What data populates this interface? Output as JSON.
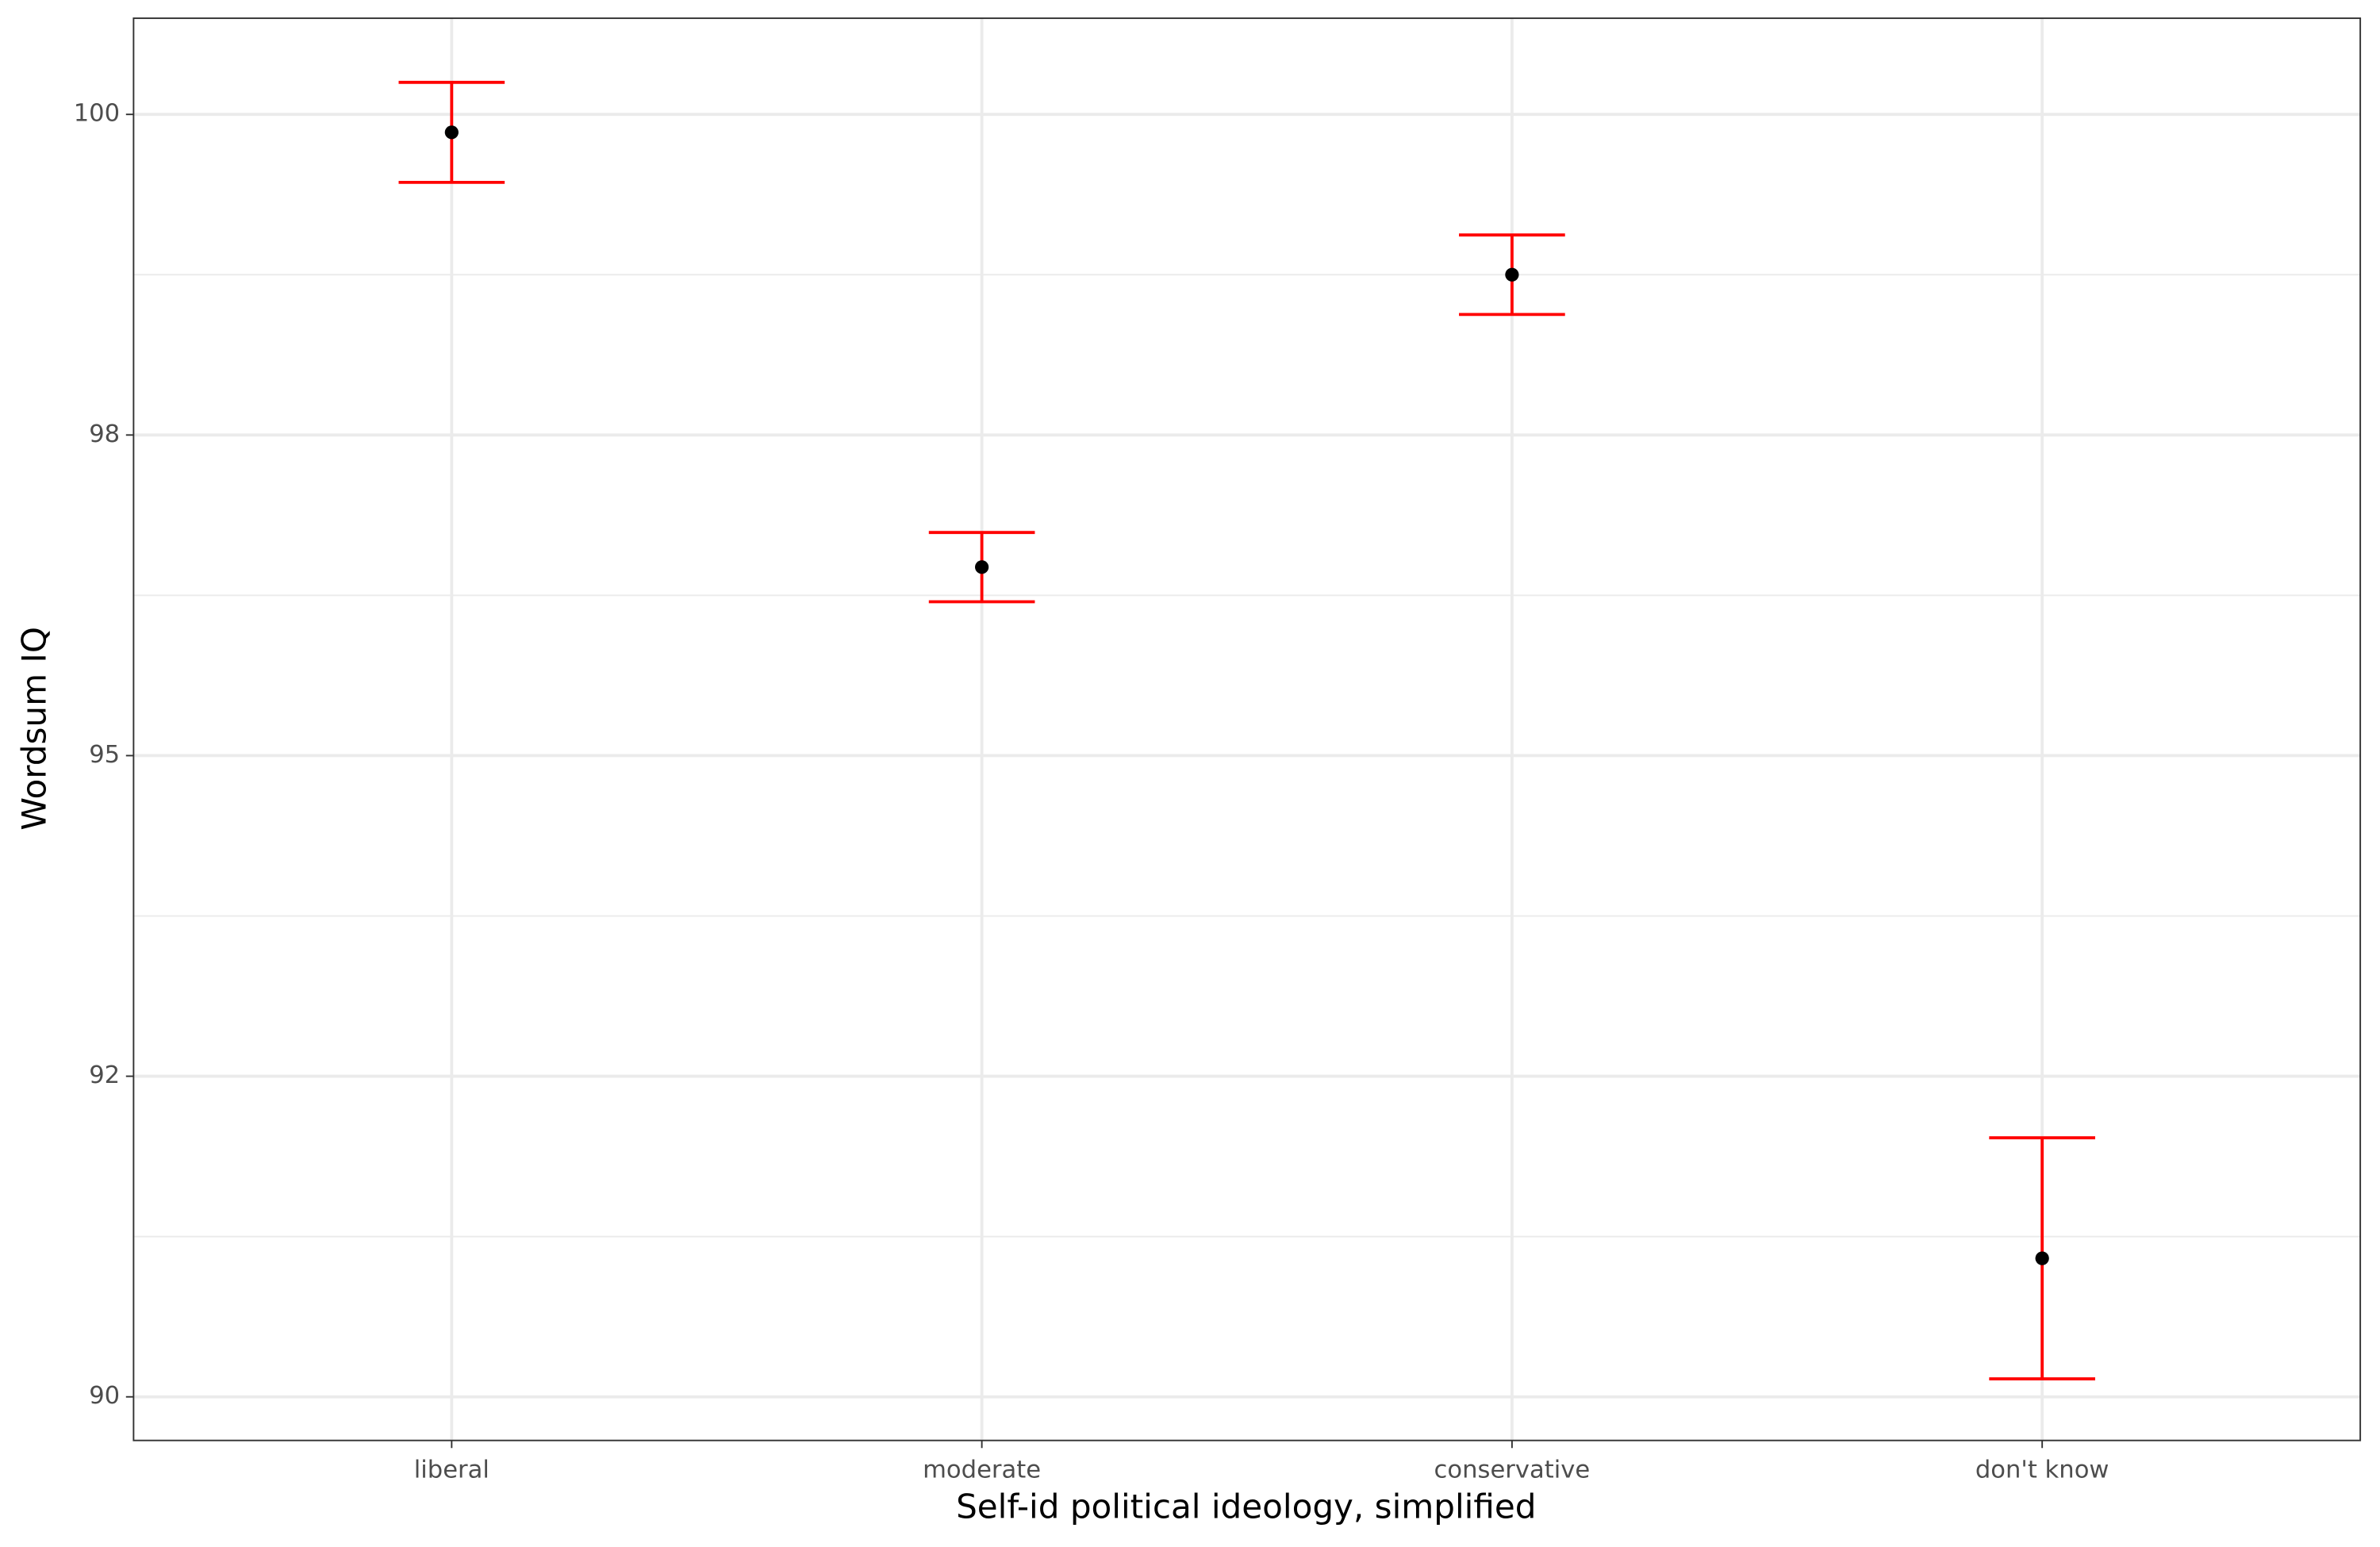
{
  "chart_data": {
    "type": "errorbar",
    "x_label": "Self-id political ideology, simplified",
    "y_label": "Wordsum IQ",
    "categories": [
      "liberal",
      "moderate",
      "conservative",
      "don't know"
    ],
    "values": [
      99.86,
      96.47,
      98.75,
      91.08
    ],
    "errors": [
      0.39,
      0.27,
      0.31,
      0.94
    ],
    "color": "#000000",
    "error_color": "#ff0000",
    "ylim": [
      89.66,
      100.75
    ],
    "yticks": [
      90,
      {
        "value": 92.5,
        "label": "92"
      },
      95,
      {
        "value": 97.5,
        "label": "98"
      },
      100
    ],
    "grid": true
  }
}
